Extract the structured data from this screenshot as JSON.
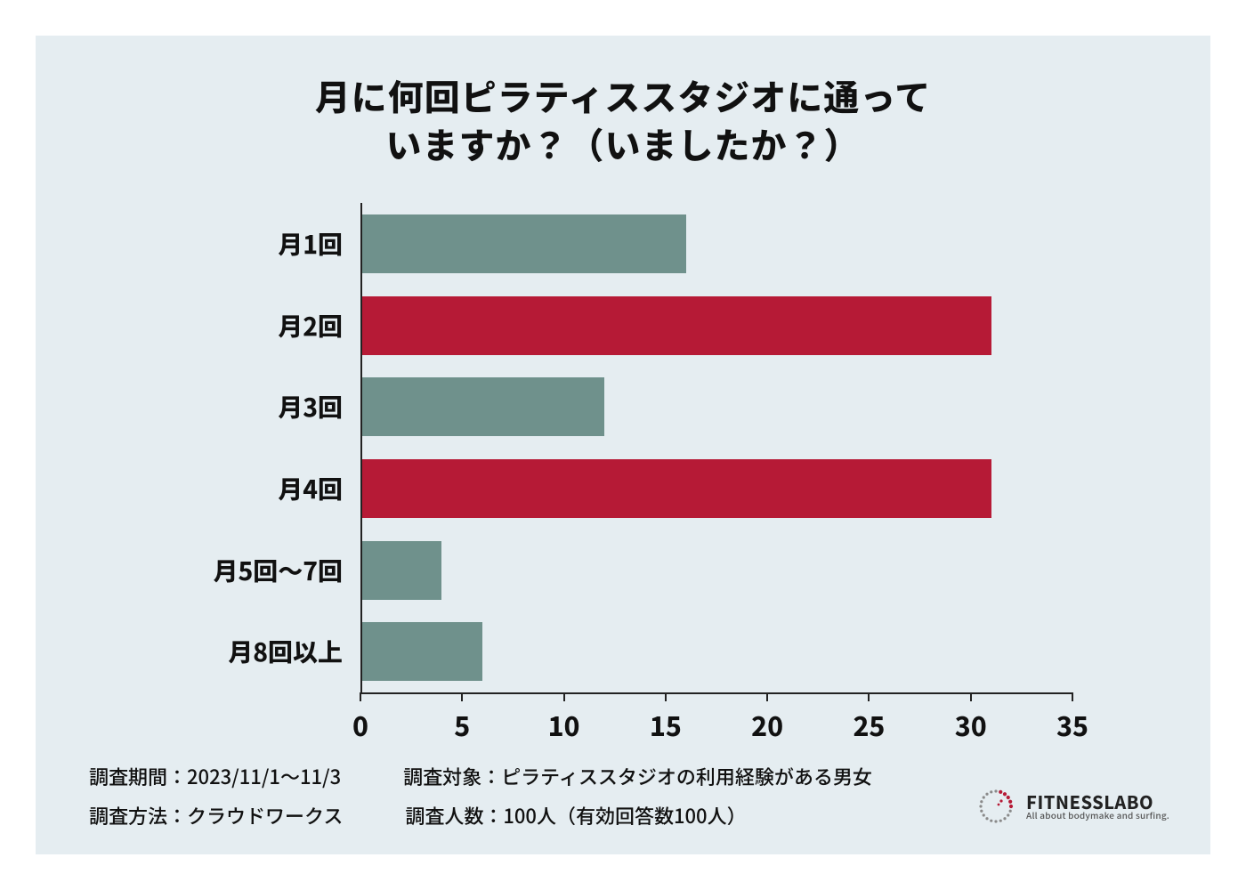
{
  "background_color": "#e5edf1",
  "title": {
    "line1": "月に何回ピラティススタジオに通って",
    "line2": "いますか？（いましたか？）",
    "fontsize": 40,
    "color": "#111111"
  },
  "chart": {
    "type": "horizontal_bar",
    "x_min": 0,
    "x_max": 35,
    "x_tick_step": 5,
    "x_ticks": [
      "0",
      "5",
      "10",
      "15",
      "20",
      "25",
      "30",
      "35"
    ],
    "tick_fontsize": 30,
    "label_fontsize": 28,
    "bar_height_ratio": 0.72,
    "colors": {
      "normal": "#6f918c",
      "highlight": "#b61a36",
      "axis": "#222222",
      "text": "#111111"
    },
    "categories": [
      {
        "label": "月1回",
        "value": 16,
        "highlight": false
      },
      {
        "label": "月2回",
        "value": 31,
        "highlight": true
      },
      {
        "label": "月3回",
        "value": 12,
        "highlight": false
      },
      {
        "label": "月4回",
        "value": 31,
        "highlight": true
      },
      {
        "label": "月5回〜7回",
        "value": 4,
        "highlight": false
      },
      {
        "label": "月8回以上",
        "value": 6,
        "highlight": false
      }
    ]
  },
  "footer": {
    "fontsize": 22,
    "period_label": "調査期間：2023/11/1〜11/3",
    "target_label": "調査対象：ピラティススタジオの利用経験がある男女",
    "method_label": "調査方法：クラウドワークス",
    "count_label": "調査人数：100人（有効回答数100人）"
  },
  "logo": {
    "name": "FITNESSLABO",
    "tagline": "All about bodymake and surfing.",
    "name_fontsize": 20,
    "accent_color": "#b61a36",
    "dot_color_muted": "#8a8a8a"
  }
}
